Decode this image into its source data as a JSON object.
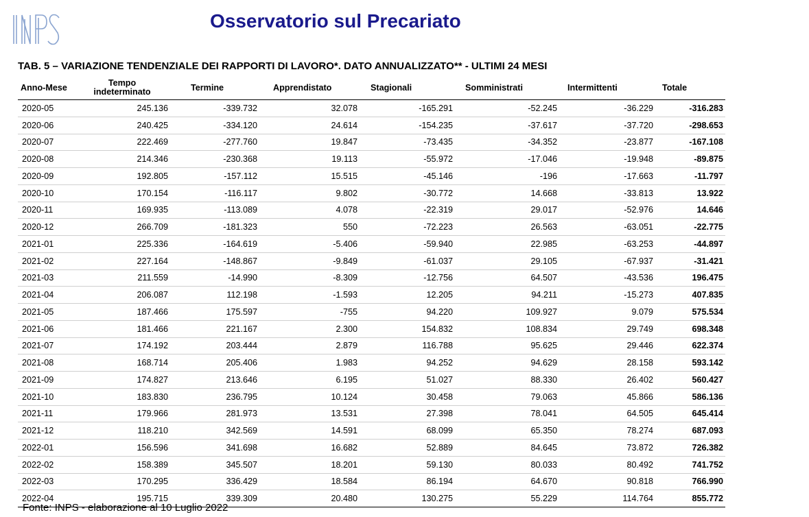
{
  "header": {
    "logo_text": "INPS",
    "title": "Osservatorio sul Precariato",
    "table_title": "TAB. 5  – VARIAZIONE TENDENZIALE DEI RAPPORTI DI LAVORO*.  DATO ANNUALIZZATO** - ULTIMI 24 MESI"
  },
  "table": {
    "columns": [
      "Anno-Mese",
      "Tempo indeterminato",
      "Termine",
      "Apprendistato",
      "Stagionali",
      "Somministrati",
      "Intermittenti",
      "Totale"
    ],
    "col_tempo_l1": "Tempo",
    "col_tempo_l2": "indeterminato",
    "rows": [
      [
        "2020-05",
        "245.136",
        "-339.732",
        "32.078",
        "-165.291",
        "-52.245",
        "-36.229",
        "-316.283"
      ],
      [
        "2020-06",
        "240.425",
        "-334.120",
        "24.614",
        "-154.235",
        "-37.617",
        "-37.720",
        "-298.653"
      ],
      [
        "2020-07",
        "222.469",
        "-277.760",
        "19.847",
        "-73.435",
        "-34.352",
        "-23.877",
        "-167.108"
      ],
      [
        "2020-08",
        "214.346",
        "-230.368",
        "19.113",
        "-55.972",
        "-17.046",
        "-19.948",
        "-89.875"
      ],
      [
        "2020-09",
        "192.805",
        "-157.112",
        "15.515",
        "-45.146",
        "-196",
        "-17.663",
        "-11.797"
      ],
      [
        "2020-10",
        "170.154",
        "-116.117",
        "9.802",
        "-30.772",
        "14.668",
        "-33.813",
        "13.922"
      ],
      [
        "2020-11",
        "169.935",
        "-113.089",
        "4.078",
        "-22.319",
        "29.017",
        "-52.976",
        "14.646"
      ],
      [
        "2020-12",
        "266.709",
        "-181.323",
        "550",
        "-72.223",
        "26.563",
        "-63.051",
        "-22.775"
      ],
      [
        "2021-01",
        "225.336",
        "-164.619",
        "-5.406",
        "-59.940",
        "22.985",
        "-63.253",
        "-44.897"
      ],
      [
        "2021-02",
        "227.164",
        "-148.867",
        "-9.849",
        "-61.037",
        "29.105",
        "-67.937",
        "-31.421"
      ],
      [
        "2021-03",
        "211.559",
        "-14.990",
        "-8.309",
        "-12.756",
        "64.507",
        "-43.536",
        "196.475"
      ],
      [
        "2021-04",
        "206.087",
        "112.198",
        "-1.593",
        "12.205",
        "94.211",
        "-15.273",
        "407.835"
      ],
      [
        "2021-05",
        "187.466",
        "175.597",
        "-755",
        "94.220",
        "109.927",
        "9.079",
        "575.534"
      ],
      [
        "2021-06",
        "181.466",
        "221.167",
        "2.300",
        "154.832",
        "108.834",
        "29.749",
        "698.348"
      ],
      [
        "2021-07",
        "174.192",
        "203.444",
        "2.879",
        "116.788",
        "95.625",
        "29.446",
        "622.374"
      ],
      [
        "2021-08",
        "168.714",
        "205.406",
        "1.983",
        "94.252",
        "94.629",
        "28.158",
        "593.142"
      ],
      [
        "2021-09",
        "174.827",
        "213.646",
        "6.195",
        "51.027",
        "88.330",
        "26.402",
        "560.427"
      ],
      [
        "2021-10",
        "183.830",
        "236.795",
        "10.124",
        "30.458",
        "79.063",
        "45.866",
        "586.136"
      ],
      [
        "2021-11",
        "179.966",
        "281.973",
        "13.531",
        "27.398",
        "78.041",
        "64.505",
        "645.414"
      ],
      [
        "2021-12",
        "118.210",
        "342.569",
        "14.591",
        "68.099",
        "65.350",
        "78.274",
        "687.093"
      ],
      [
        "2022-01",
        "156.596",
        "341.698",
        "16.682",
        "52.889",
        "84.645",
        "73.872",
        "726.382"
      ],
      [
        "2022-02",
        "158.389",
        "345.507",
        "18.201",
        "59.130",
        "80.033",
        "80.492",
        "741.752"
      ],
      [
        "2022-03",
        "170.295",
        "336.429",
        "18.584",
        "86.194",
        "64.670",
        "90.818",
        "766.990"
      ],
      [
        "2022-04",
        "195.715",
        "339.309",
        "20.480",
        "130.275",
        "55.229",
        "114.764",
        "855.772"
      ]
    ]
  },
  "footer": {
    "source": "Fonte: INPS - elaborazione al 10 Luglio 2022"
  },
  "colors": {
    "title": "#1a1a8c",
    "logo": "#7f9bc9"
  }
}
